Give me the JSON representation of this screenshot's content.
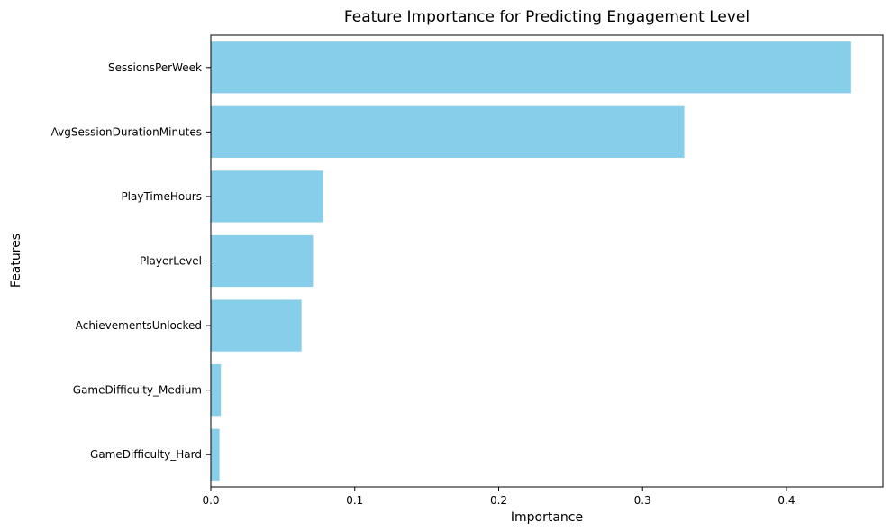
{
  "chart_data": {
    "type": "bar",
    "orientation": "horizontal",
    "title": "Feature Importance for Predicting Engagement Level",
    "xlabel": "Importance",
    "ylabel": "Features",
    "categories": [
      "SessionsPerWeek",
      "AvgSessionDurationMinutes",
      "PlayTimeHours",
      "PlayerLevel",
      "AchievementsUnlocked",
      "GameDifficulty_Medium",
      "GameDifficulty_Hard"
    ],
    "values": [
      0.445,
      0.329,
      0.078,
      0.071,
      0.063,
      0.007,
      0.006
    ],
    "xlim": [
      0,
      0.467
    ],
    "xticks": [
      0,
      0.1,
      0.2,
      0.3,
      0.4
    ],
    "xtick_labels": [
      "0.0",
      "0.1",
      "0.2",
      "0.3",
      "0.4"
    ],
    "bar_color": "#87CEEB",
    "grid": false,
    "legend": "none"
  }
}
